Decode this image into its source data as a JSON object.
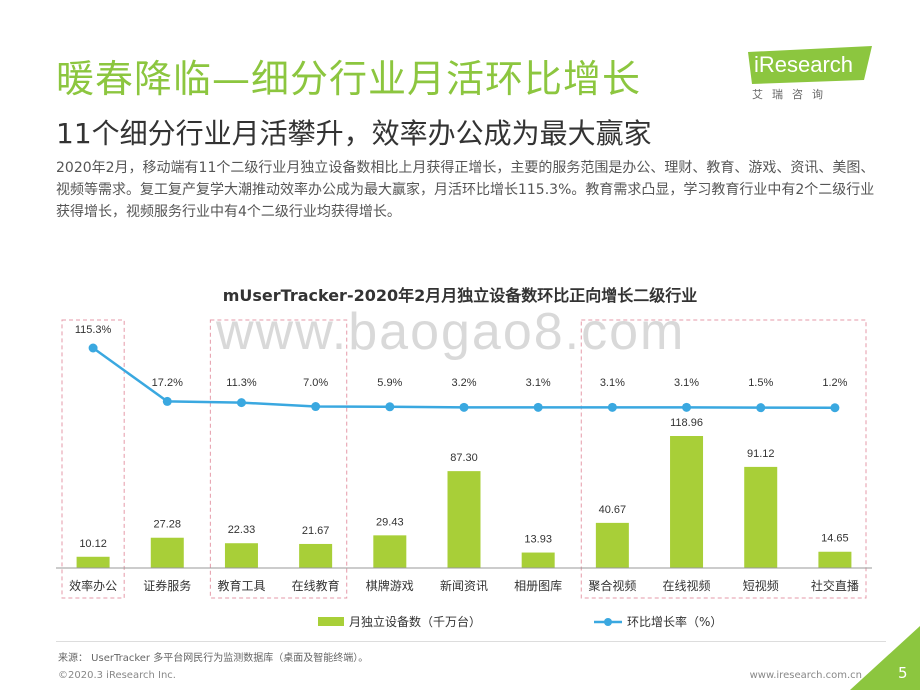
{
  "page": {
    "title": "暖春降临—细分行业月活环比增长",
    "subtitle": "11个细分行业月活攀升，效率办公成为最大赢家",
    "description": "2020年2月，移动端有11个二级行业月独立设备数相比上月获得正增长，主要的服务范围是办公、理财、教育、游戏、资讯、美图、视频等需求。复工复产复学大潮推动效率办公成为最大赢家，月活环比增长115.3%。教育需求凸显，学习教育行业中有2个二级行业获得增长，视频服务行业中有4个二级行业均获得增长。",
    "logo_name": "iResearch",
    "logo_sub": "艾瑞咨询",
    "watermark": "www.baogao8.com",
    "source": "来源： UserTracker 多平台网民行为监测数据库（桌面及智能终端）。",
    "copyright": "©2020.3 iResearch Inc.",
    "website": "www.iresearch.com.cn",
    "page_number": "5"
  },
  "colors": {
    "accent_green": "#8cc63f",
    "bar_green": "#a8cf38",
    "line_blue": "#3aa8e0",
    "highlight_border": "#e59aa8"
  },
  "chart_data": {
    "type": "bar",
    "title": "mUserTracker-2020年2月月独立设备数环比正向增长二级行业",
    "categories": [
      "效率办公",
      "证券服务",
      "教育工具",
      "在线教育",
      "棋牌游戏",
      "新闻资讯",
      "相册图库",
      "聚合视频",
      "在线视频",
      "短视频",
      "社交直播"
    ],
    "series": [
      {
        "name": "月独立设备数（千万台）",
        "type": "bar",
        "values": [
          10.12,
          27.28,
          22.33,
          21.67,
          29.43,
          87.3,
          13.93,
          40.67,
          118.96,
          91.12,
          14.65
        ],
        "labels": [
          "10.12",
          "27.28",
          "22.33",
          "21.67",
          "29.43",
          "87.30",
          "13.93",
          "40.67",
          "118.96",
          "91.12",
          "14.65"
        ]
      },
      {
        "name": "环比增长率（%）",
        "type": "line",
        "values": [
          115.3,
          17.2,
          11.3,
          7.0,
          5.9,
          3.2,
          3.1,
          3.1,
          3.1,
          1.5,
          1.2
        ],
        "labels": [
          "115.3%",
          "17.2%",
          "11.3%",
          "7.0%",
          "5.9%",
          "3.2%",
          "3.1%",
          "3.1%",
          "3.1%",
          "1.5%",
          "1.2%"
        ]
      }
    ],
    "highlight_groups": [
      [
        0,
        0
      ],
      [
        2,
        3
      ],
      [
        7,
        10
      ]
    ],
    "legend_position": "bottom",
    "grid": false
  }
}
